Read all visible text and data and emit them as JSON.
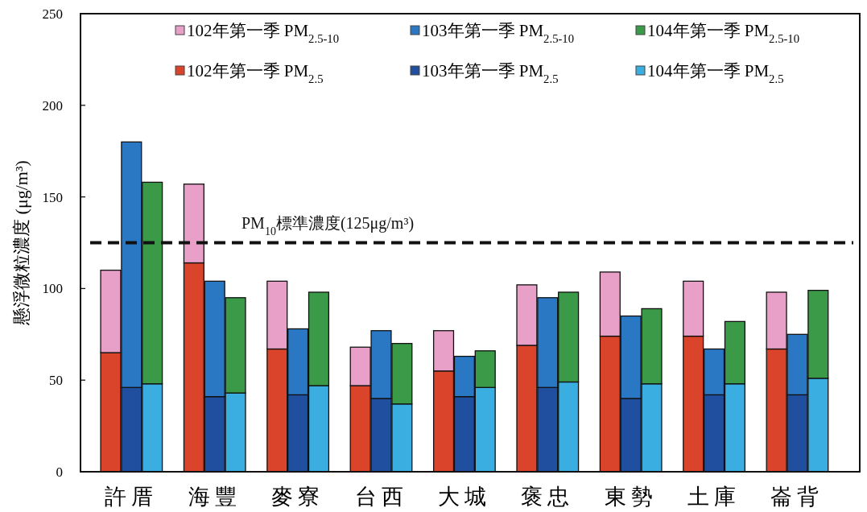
{
  "chart_data": {
    "type": "bar",
    "ylabel": "懸浮微粒濃度 (μg/m³)",
    "categories": [
      null,
      "許厝",
      null,
      null,
      null,
      "海豐",
      null,
      null,
      null,
      "麥寮",
      null,
      null,
      null,
      "台西",
      null,
      null,
      null,
      "大城",
      null,
      null,
      null,
      "褒忠",
      null,
      null,
      null,
      "東勢",
      null,
      null,
      null,
      "土庫",
      null,
      null,
      null,
      "崙背",
      null,
      null
    ],
    "stacked": true,
    "legend": "top",
    "ylim": [
      0,
      250
    ],
    "yticks": [
      0,
      50,
      100,
      150,
      200,
      250
    ],
    "series": [
      {
        "name": "102年第一季 PM$_{2.5}$",
        "color": "#d9442a",
        "values": [
          65,
          null,
          null,
          null,
          114,
          null,
          null,
          null,
          67,
          null,
          null,
          null,
          47,
          null,
          null,
          null,
          55,
          null,
          null,
          null,
          69,
          null,
          null,
          null,
          74,
          null,
          null,
          null,
          74,
          null,
          null,
          null,
          67,
          null,
          null,
          null
        ]
      },
      {
        "name": "102年第一季 PM$_{2.5-10}$",
        "color": "#e8a0c8",
        "values": [
          45,
          null,
          null,
          null,
          43,
          null,
          null,
          null,
          37,
          null,
          null,
          null,
          21,
          null,
          null,
          null,
          22,
          null,
          null,
          null,
          33,
          null,
          null,
          null,
          35,
          null,
          null,
          null,
          30,
          null,
          null,
          null,
          31,
          null,
          null,
          null
        ]
      },
      {
        "name": "103年第一季 PM$_{2.5}$",
        "color": "#1f4f9e",
        "values": [
          null,
          46,
          null,
          null,
          null,
          41,
          null,
          null,
          null,
          42,
          null,
          null,
          null,
          40,
          null,
          null,
          null,
          41,
          null,
          null,
          null,
          46,
          null,
          null,
          null,
          40,
          null,
          null,
          null,
          42,
          null,
          null,
          null,
          42,
          null,
          null
        ]
      },
      {
        "name": "103年第一季 PM$_{2.5-10}$",
        "color": "#2a78c4",
        "values": [
          null,
          134,
          null,
          null,
          null,
          63,
          null,
          null,
          null,
          36,
          null,
          null,
          null,
          37,
          null,
          null,
          null,
          22,
          null,
          null,
          null,
          49,
          null,
          null,
          null,
          45,
          null,
          null,
          null,
          25,
          null,
          null,
          null,
          33,
          null,
          null
        ]
      },
      {
        "name": "104年第一季 PM$_{2.5}$",
        "color": "#3aaee0",
        "values": [
          null,
          null,
          48,
          null,
          null,
          null,
          43,
          null,
          null,
          null,
          47,
          null,
          null,
          null,
          37,
          null,
          null,
          null,
          46,
          null,
          null,
          null,
          49,
          null,
          null,
          null,
          48,
          null,
          null,
          null,
          48,
          null,
          null,
          null,
          51,
          null
        ]
      },
      {
        "name": "104年第一季 PM$_{2.5-10}$",
        "color": "#3a9a48",
        "values": [
          null,
          null,
          110,
          null,
          null,
          null,
          52,
          null,
          null,
          null,
          51,
          null,
          null,
          null,
          33,
          null,
          null,
          null,
          20,
          null,
          null,
          null,
          49,
          null,
          null,
          null,
          41,
          null,
          null,
          null,
          34,
          null,
          null,
          null,
          48,
          null
        ]
      }
    ],
    "ref_lines": [
      {
        "axis": "y",
        "value": 125,
        "label": "PM$_{10}$標準濃度(125μg/m³)",
        "line_style": "dashed",
        "color": "#111111"
      }
    ]
  }
}
